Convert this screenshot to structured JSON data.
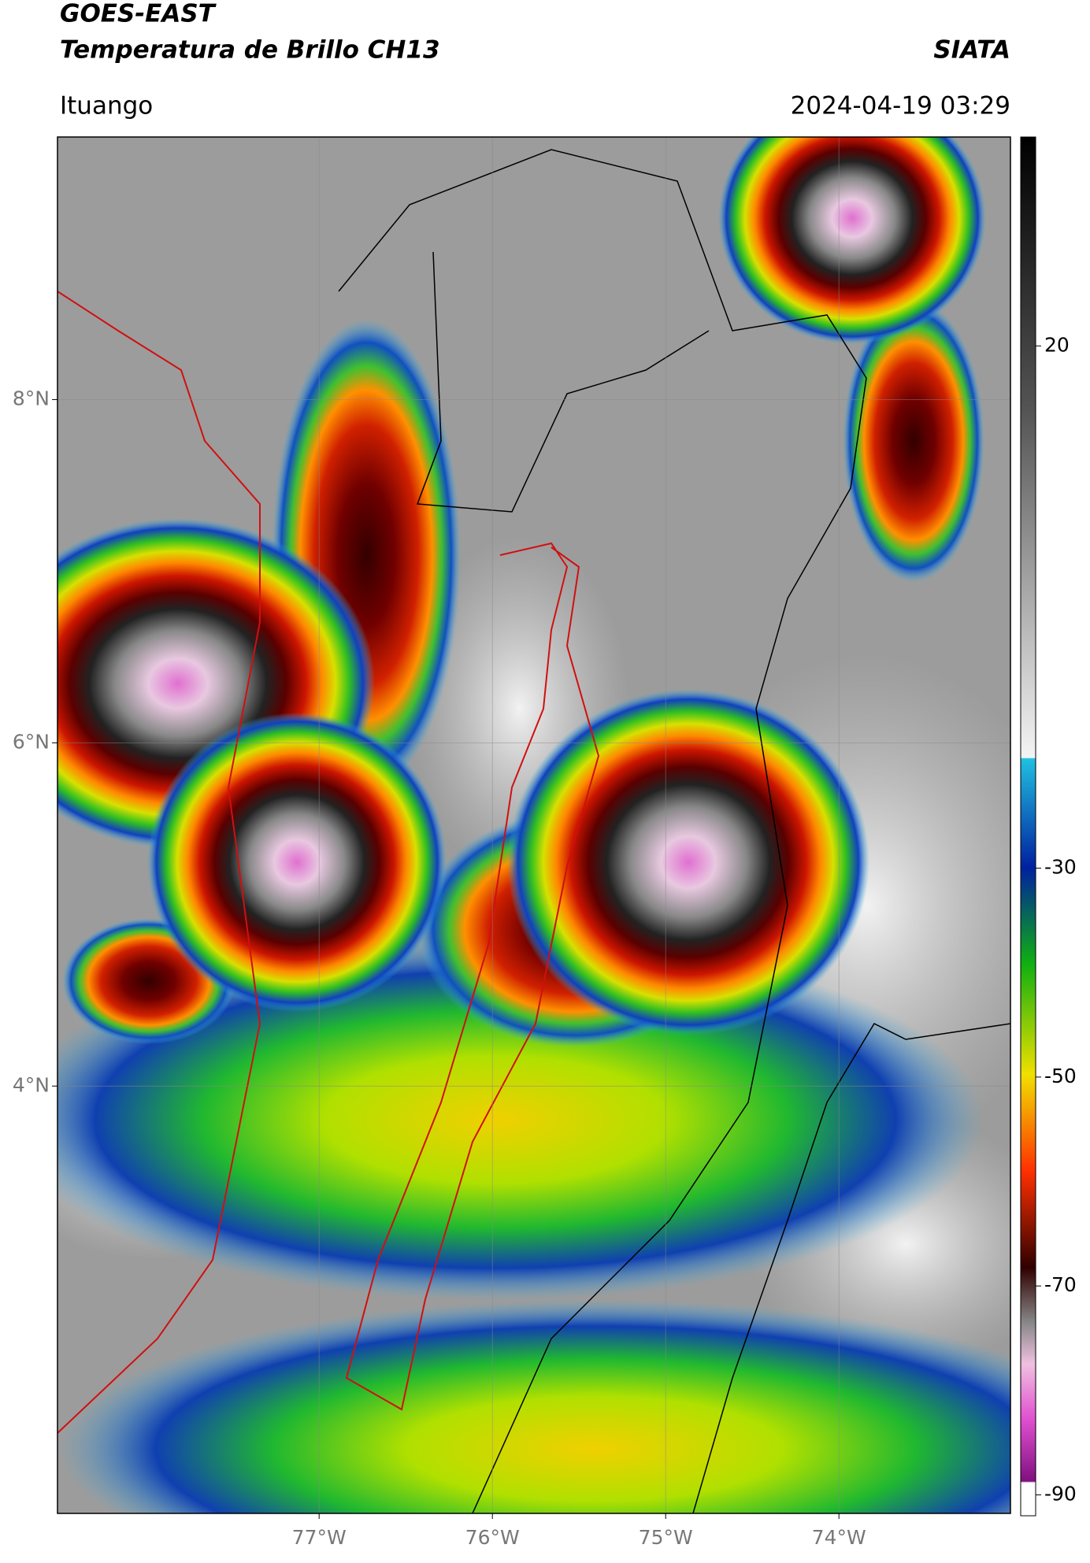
{
  "map": {
    "title": "GOES-EAST",
    "subtitle": "Temperatura de Brillo CH13",
    "source": "SIATA",
    "location": "Ituango",
    "datetime": "2024-04-19 03:29",
    "xlim": [
      -78.51,
      -73.01
    ],
    "ylim": [
      1.51,
      9.53
    ],
    "xticks": [
      {
        "value": -77,
        "label": "77°W"
      },
      {
        "value": -76,
        "label": "76°W"
      },
      {
        "value": -75,
        "label": "75°W"
      },
      {
        "value": -74,
        "label": "74°W"
      }
    ],
    "yticks": [
      {
        "value": 4,
        "label": "4°N"
      },
      {
        "value": 6,
        "label": "6°N"
      },
      {
        "value": 8,
        "label": "8°N"
      }
    ],
    "grid": true,
    "colorbar": {
      "lim": [
        -92,
        40
      ],
      "ticks": [
        20,
        -30,
        -50,
        -70,
        -90
      ]
    }
  }
}
